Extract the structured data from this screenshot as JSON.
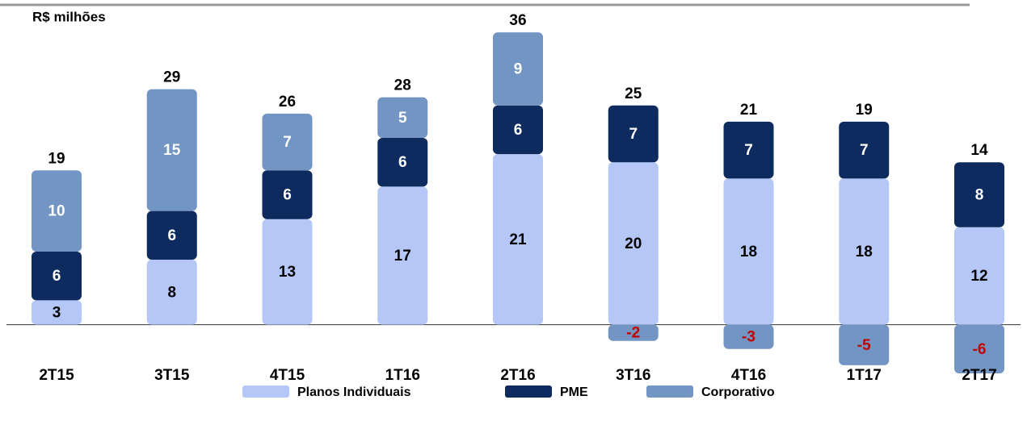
{
  "chart_data": {
    "type": "stacked_bar",
    "subtitle": "R$ milhões",
    "categories": [
      "2T15",
      "3T15",
      "4T15",
      "1T16",
      "2T16",
      "3T16",
      "4T16",
      "1T17",
      "2T17"
    ],
    "series": [
      {
        "name": "Planos Individuais",
        "color": "#b4c7f7",
        "label_color": "#000000",
        "values": [
          3,
          8,
          13,
          17,
          21,
          20,
          18,
          18,
          12
        ]
      },
      {
        "name": "PME",
        "color": "#0d2b5e",
        "label_color": "#ffffff",
        "values": [
          6,
          6,
          6,
          6,
          6,
          7,
          7,
          7,
          8
        ]
      },
      {
        "name": "Corporativo",
        "color": "#7395c4",
        "label_color": "#ffffff",
        "negative_label_color": "#c00000",
        "values": [
          10,
          15,
          7,
          5,
          9,
          -2,
          -3,
          -5,
          -6
        ]
      }
    ],
    "totals": [
      19,
      29,
      26,
      28,
      36,
      25,
      21,
      19,
      14
    ],
    "ylim": [
      -6,
      38
    ],
    "legend": "bottom"
  }
}
